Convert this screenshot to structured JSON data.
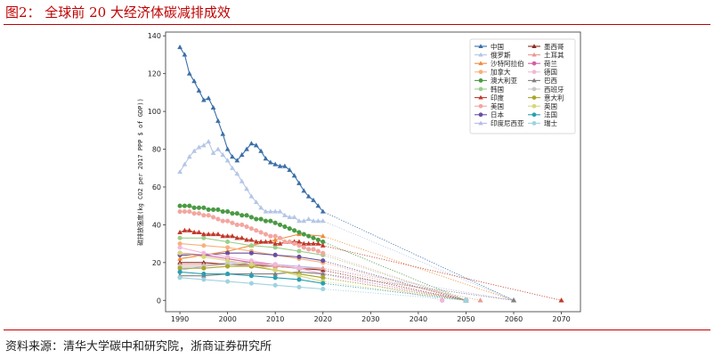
{
  "figure_title": "图2：  全球前 20 大经济体碳减排成效",
  "source": "资料来源：清华大学碳中和研究院，浙商证券研究所",
  "chart_data": {
    "type": "line",
    "title": "",
    "xlabel": "",
    "ylabel": "碳排放强度(kg CO2 per 2017 PPP $ of GDP))",
    "xlim": [
      1987,
      2074
    ],
    "ylim": [
      -6,
      142
    ],
    "xticks": [
      1990,
      2000,
      2010,
      2020,
      2030,
      2040,
      2050,
      2060,
      2070
    ],
    "yticks": [
      0,
      20,
      40,
      60,
      80,
      100,
      120,
      140
    ],
    "grid": false,
    "legend_position": "top-right",
    "series": [
      {
        "name": "中国",
        "color": "#3b6fa8",
        "marker": "triangle",
        "target": 2060,
        "years": [
          1990,
          1991,
          1992,
          1993,
          1994,
          1995,
          1996,
          1997,
          1998,
          1999,
          2000,
          2001,
          2002,
          2003,
          2004,
          2005,
          2006,
          2007,
          2008,
          2009,
          2010,
          2011,
          2012,
          2013,
          2014,
          2015,
          2016,
          2017,
          2018,
          2019,
          2020
        ],
        "values": [
          134,
          130,
          120,
          116,
          111,
          106,
          107,
          102,
          95,
          88,
          80,
          76,
          74,
          77,
          80,
          83,
          82,
          79,
          75,
          73,
          72,
          71,
          71,
          69,
          66,
          62,
          58,
          55,
          53,
          50,
          47
        ]
      },
      {
        "name": "俄罗斯",
        "color": "#b4c6e7",
        "marker": "triangle",
        "target": 2060,
        "years": [
          1990,
          1991,
          1992,
          1993,
          1994,
          1995,
          1996,
          1997,
          1998,
          1999,
          2000,
          2001,
          2002,
          2003,
          2004,
          2005,
          2006,
          2007,
          2008,
          2009,
          2010,
          2011,
          2012,
          2013,
          2014,
          2015,
          2016,
          2017,
          2018,
          2019,
          2020
        ],
        "values": [
          68,
          72,
          76,
          79,
          81,
          82,
          84,
          78,
          80,
          77,
          74,
          70,
          67,
          63,
          59,
          55,
          52,
          49,
          47,
          47,
          47,
          47,
          45,
          44,
          44,
          42,
          42,
          43,
          42,
          42,
          42
        ]
      },
      {
        "name": "沙特阿拉伯",
        "color": "#f08c3a",
        "marker": "triangle",
        "target": 2060,
        "years": [
          1990,
          1995,
          2000,
          2005,
          2010,
          2015,
          2020
        ],
        "values": [
          22,
          24,
          26,
          29,
          32,
          35,
          34
        ]
      },
      {
        "name": "加拿大",
        "color": "#f5b27a",
        "marker": "circle",
        "target": 2050,
        "years": [
          1990,
          1995,
          2000,
          2005,
          2010,
          2015,
          2020
        ],
        "values": [
          30,
          29,
          28,
          26,
          24,
          22,
          20
        ]
      },
      {
        "name": "澳大利亚",
        "color": "#4a9a44",
        "marker": "circle",
        "target": 2050,
        "years": [
          1990,
          1991,
          1992,
          1993,
          1994,
          1995,
          1996,
          1997,
          1998,
          1999,
          2000,
          2001,
          2002,
          2003,
          2004,
          2005,
          2006,
          2007,
          2008,
          2009,
          2010,
          2011,
          2012,
          2013,
          2014,
          2015,
          2016,
          2017,
          2018,
          2019,
          2020
        ],
        "values": [
          50,
          50,
          50,
          49,
          49,
          49,
          48,
          48,
          48,
          47,
          47,
          46,
          46,
          45,
          45,
          44,
          43,
          43,
          42,
          42,
          41,
          40,
          39,
          38,
          37,
          36,
          35,
          34,
          33,
          32,
          31
        ]
      },
      {
        "name": "韩国",
        "color": "#9acf8a",
        "marker": "circle",
        "target": 2050,
        "years": [
          1990,
          1995,
          2000,
          2005,
          2010,
          2015,
          2020
        ],
        "values": [
          33,
          33,
          31,
          29,
          28,
          26,
          24
        ]
      },
      {
        "name": "印度",
        "color": "#c0392b",
        "marker": "triangle",
        "target": 2070,
        "years": [
          1990,
          1991,
          1992,
          1993,
          1994,
          1995,
          1996,
          1997,
          1998,
          1999,
          2000,
          2001,
          2002,
          2003,
          2004,
          2005,
          2006,
          2007,
          2008,
          2009,
          2010,
          2011,
          2012,
          2013,
          2014,
          2015,
          2016,
          2017,
          2018,
          2019,
          2020
        ],
        "values": [
          36,
          37,
          37,
          36,
          36,
          35,
          35,
          35,
          35,
          34,
          34,
          34,
          33,
          33,
          32,
          32,
          31,
          31,
          31,
          31,
          30,
          30,
          31,
          31,
          31,
          31,
          30,
          30,
          30,
          30,
          29
        ]
      },
      {
        "name": "美国",
        "color": "#f4a6a0",
        "marker": "circle",
        "target": 2050,
        "years": [
          1990,
          1991,
          1992,
          1993,
          1994,
          1995,
          1996,
          1997,
          1998,
          1999,
          2000,
          2001,
          2002,
          2003,
          2004,
          2005,
          2006,
          2007,
          2008,
          2009,
          2010,
          2011,
          2012,
          2013,
          2014,
          2015,
          2016,
          2017,
          2018,
          2019,
          2020
        ],
        "values": [
          47,
          47,
          47,
          46,
          46,
          45,
          45,
          44,
          43,
          42,
          42,
          41,
          40,
          40,
          39,
          38,
          37,
          36,
          35,
          34,
          34,
          33,
          31,
          31,
          30,
          29,
          28,
          27,
          27,
          26,
          25
        ]
      },
      {
        "name": "日本",
        "color": "#6a4fa0",
        "marker": "circle",
        "target": 2050,
        "years": [
          1990,
          1995,
          2000,
          2005,
          2010,
          2015,
          2020
        ],
        "values": [
          24,
          24,
          25,
          25,
          24,
          23,
          21
        ]
      },
      {
        "name": "印度尼西亚",
        "color": "#b9b9ee",
        "marker": "triangle",
        "target": 2060,
        "years": [
          1990,
          1995,
          2000,
          2005,
          2010,
          2015,
          2020
        ],
        "values": [
          16,
          18,
          20,
          20,
          19,
          18,
          17
        ]
      },
      {
        "name": "墨西哥",
        "color": "#8b2c22",
        "marker": "triangle",
        "target": 2050,
        "years": [
          1990,
          1995,
          2000,
          2005,
          2010,
          2015,
          2020
        ],
        "values": [
          20,
          20,
          19,
          19,
          18,
          17,
          16
        ]
      },
      {
        "name": "土耳其",
        "color": "#e89a92",
        "marker": "triangle",
        "target": 2053,
        "years": [
          1990,
          1995,
          2000,
          2005,
          2010,
          2015,
          2020
        ],
        "values": [
          19,
          19,
          19,
          18,
          18,
          17,
          17
        ]
      },
      {
        "name": "荷兰",
        "color": "#d35fa5",
        "marker": "circle",
        "target": 2050,
        "years": [
          1990,
          1995,
          2000,
          2005,
          2010,
          2015,
          2020
        ],
        "values": [
          25,
          24,
          22,
          20,
          19,
          17,
          14
        ]
      },
      {
        "name": "德国",
        "color": "#f2b8d8",
        "marker": "circle",
        "target": 2045,
        "years": [
          1990,
          1995,
          2000,
          2005,
          2010,
          2015,
          2020
        ],
        "values": [
          28,
          25,
          23,
          21,
          19,
          17,
          14
        ]
      },
      {
        "name": "巴西",
        "color": "#808080",
        "marker": "triangle",
        "target": 2060,
        "years": [
          1990,
          1995,
          2000,
          2005,
          2010,
          2015,
          2020
        ],
        "values": [
          13,
          13,
          14,
          14,
          14,
          15,
          14
        ]
      },
      {
        "name": "西班牙",
        "color": "#c8c8c8",
        "marker": "circle",
        "target": 2050,
        "years": [
          1990,
          1995,
          2000,
          2005,
          2010,
          2015,
          2020
        ],
        "values": [
          18,
          18,
          19,
          18,
          16,
          14,
          12
        ]
      },
      {
        "name": "意大利",
        "color": "#a8a82a",
        "marker": "circle",
        "target": 2050,
        "years": [
          1990,
          1995,
          2000,
          2005,
          2010,
          2015,
          2020
        ],
        "values": [
          17,
          17,
          18,
          18,
          16,
          14,
          12
        ]
      },
      {
        "name": "英国",
        "color": "#d6d77a",
        "marker": "circle",
        "target": 2050,
        "years": [
          1990,
          1995,
          2000,
          2005,
          2010,
          2015,
          2020
        ],
        "values": [
          25,
          23,
          21,
          19,
          16,
          13,
          10
        ]
      },
      {
        "name": "法国",
        "color": "#2a9fb2",
        "marker": "circle",
        "target": 2050,
        "years": [
          1990,
          1995,
          2000,
          2005,
          2010,
          2015,
          2020
        ],
        "values": [
          15,
          14,
          14,
          13,
          12,
          11,
          9
        ]
      },
      {
        "name": "瑞士",
        "color": "#9fd3df",
        "marker": "circle",
        "target": 2050,
        "years": [
          1990,
          1995,
          2000,
          2005,
          2010,
          2015,
          2020
        ],
        "values": [
          12,
          11,
          10,
          9,
          8,
          7,
          6
        ]
      }
    ]
  }
}
